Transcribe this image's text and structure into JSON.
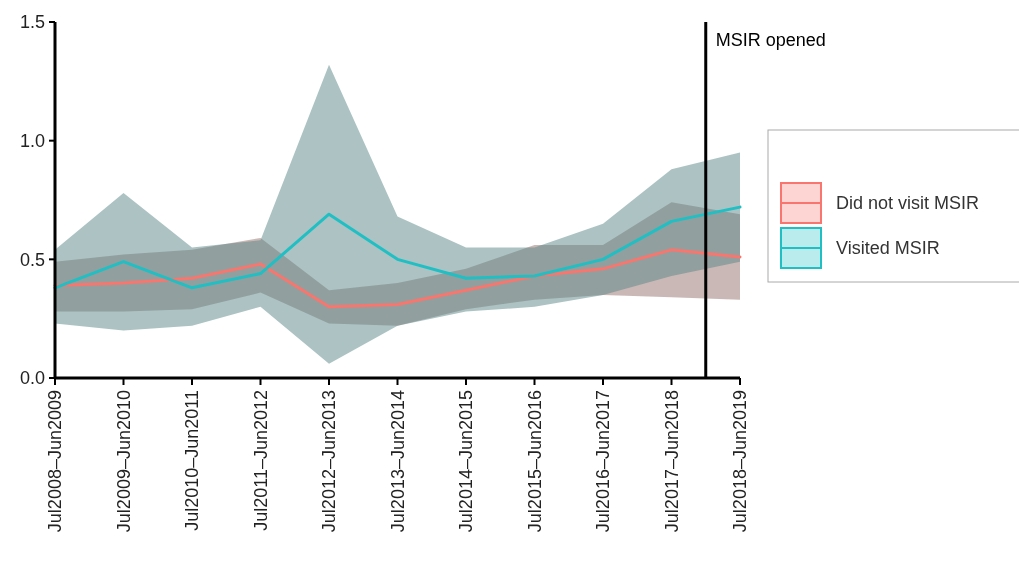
{
  "chart_data": {
    "type": "line",
    "categories": [
      "Jul2008–Jun2009",
      "Jul2009–Jun2010",
      "Jul2010–Jun2011",
      "Jul2011–Jun2012",
      "Jul2012–Jun2013",
      "Jul2013–Jun2014",
      "Jul2014–Jun2015",
      "Jul2015–Jun2016",
      "Jul2016–Jun2017",
      "Jul2017–Jun2018",
      "Jul2018–Jun2019"
    ],
    "series": [
      {
        "name": "Did not visit MSIR",
        "color": "#f8766d",
        "values": [
          0.39,
          0.4,
          0.42,
          0.48,
          0.3,
          0.31,
          0.37,
          0.43,
          0.46,
          0.54,
          0.51
        ],
        "lower": [
          0.28,
          0.28,
          0.29,
          0.36,
          0.23,
          0.22,
          0.29,
          0.33,
          0.35,
          0.34,
          0.33
        ],
        "upper": [
          0.49,
          0.52,
          0.54,
          0.59,
          0.37,
          0.4,
          0.46,
          0.56,
          0.56,
          0.74,
          0.69
        ]
      },
      {
        "name": "Visited MSIR",
        "color": "#1fbfc4",
        "values": [
          0.38,
          0.49,
          0.38,
          0.44,
          0.69,
          0.5,
          0.42,
          0.43,
          0.5,
          0.66,
          0.72
        ],
        "lower": [
          0.23,
          0.2,
          0.22,
          0.3,
          0.06,
          0.22,
          0.28,
          0.3,
          0.35,
          0.43,
          0.49
        ],
        "upper": [
          0.54,
          0.78,
          0.55,
          0.58,
          1.32,
          0.68,
          0.55,
          0.55,
          0.65,
          0.88,
          0.95
        ]
      }
    ],
    "ylim": [
      0,
      1.5
    ],
    "yticks": [
      {
        "value": 0,
        "label": "0.0"
      },
      0.5,
      {
        "value": 1,
        "label": "1.0"
      },
      1.5
    ],
    "annotations": [
      "MSIR opened"
    ],
    "legend": "right",
    "grid": false
  }
}
